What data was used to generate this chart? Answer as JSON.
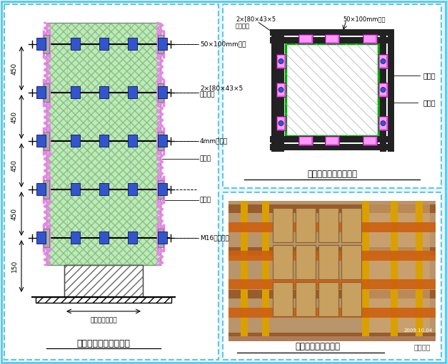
{
  "bg_color": "#e8f4f8",
  "border_color": "#5bc8e8",
  "panel_bg": "#ffffff",
  "title": "双槽钢抱箍加固立面图",
  "title2": "双槽钢抱箍加固剖面图",
  "title3": "双槽钢抱箍加固实例",
  "watermark": "筑龙施工",
  "label_50x100": "50×100mm木方",
  "label_2x80_1": "2×[80×43×5",
  "label_2x80_2": "槽钢抱箍",
  "label_4mm": "4mm厚钢板",
  "label_muzi": "木模子",
  "label_muban": "木模板",
  "label_m16": "M16对拉螺栓",
  "label_kuangjia": "框架柱截面尺寸",
  "label_top_left1": "2×[80×43×5",
  "label_top_left2": "槽钢抱箍",
  "label_top_right": "50×100mm木方",
  "label_muzi2": "木模子",
  "label_muban2": "木模板",
  "green_fill": "#a8e4a0",
  "pink_fill": "#ee82ee",
  "blue_fill": "#3355cc",
  "purple_fill": "#cc66cc",
  "steel_color": "#222222"
}
